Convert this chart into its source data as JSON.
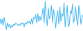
{
  "line_color": "#3eb4f0",
  "background_color": "#ffffff",
  "linewidth": 0.7,
  "figsize": [
    1.2,
    0.45
  ],
  "dpi": 100,
  "values": [
    0.5,
    -1.5,
    0.5,
    -2.0,
    1.0,
    -1.5,
    -3.5,
    -1.0,
    -2.5,
    -1.5,
    -3.0,
    -2.0,
    -2.5,
    -1.5,
    -2.0,
    -1.0,
    -1.5,
    -2.0,
    -1.5,
    -2.0,
    -1.0,
    -1.5,
    -1.0,
    -2.5,
    -1.0,
    -1.5,
    -0.5,
    -1.0,
    -0.5,
    -1.5,
    0.5,
    -1.5,
    1.0,
    0.5,
    2.0,
    -1.0,
    2.5,
    -0.5,
    1.5,
    0.0,
    2.0,
    4.5,
    -1.0,
    7.0,
    1.0,
    -2.0,
    4.5,
    0.5,
    2.0,
    5.5,
    -1.0,
    4.0,
    1.5,
    -3.0,
    1.5,
    3.5,
    -1.5,
    5.0,
    -0.5,
    2.5,
    1.5,
    6.5,
    -2.5,
    2.0,
    5.5,
    -2.5,
    -1.5,
    3.5,
    2.5,
    6.0,
    -1.0,
    1.0,
    5.0,
    0.0,
    -2.0,
    5.5,
    3.0,
    -1.5,
    1.0,
    2.0
  ]
}
